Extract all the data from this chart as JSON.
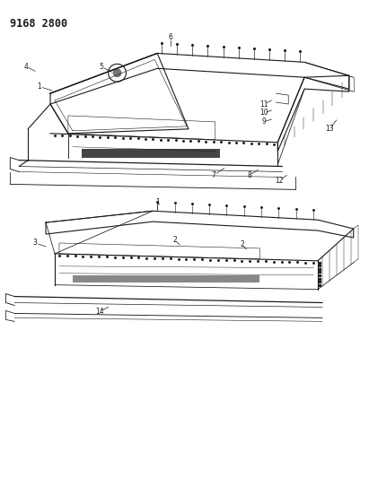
{
  "title_code": "9168 2800",
  "bg_color": "#ffffff",
  "line_color": "#1a1a1a",
  "figsize": [
    4.11,
    5.33
  ],
  "dpi": 100
}
